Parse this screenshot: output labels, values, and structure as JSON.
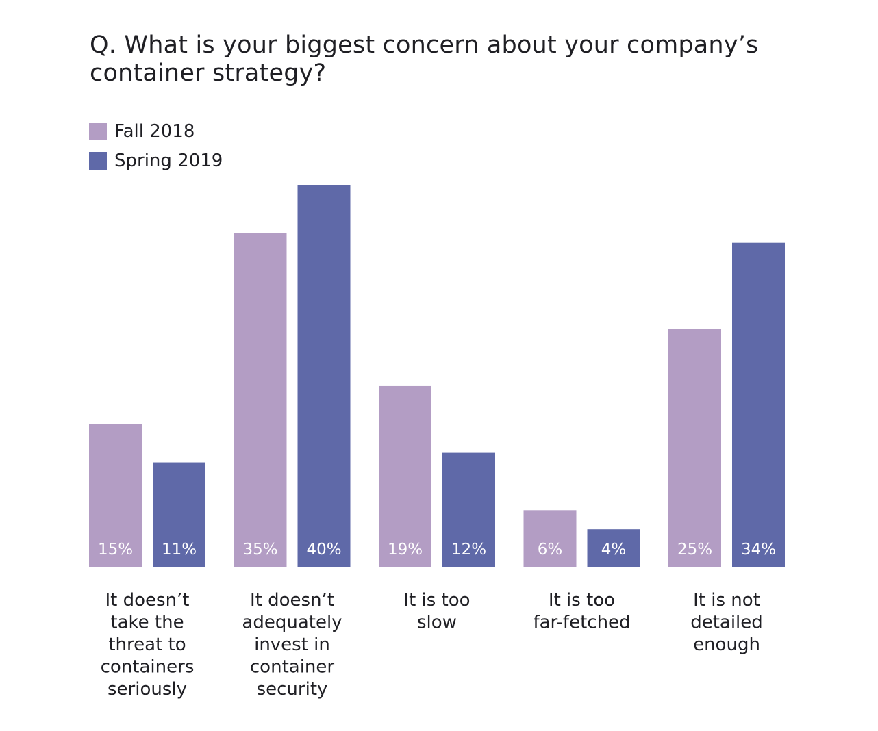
{
  "chart_data": {
    "type": "bar",
    "title": "Q. What is your biggest concern about your company’s container strategy?",
    "categories": [
      [
        "It doesn’t",
        "take the",
        "threat to",
        "containers",
        "seriously"
      ],
      [
        "It doesn’t",
        "adequately",
        "invest in",
        "container",
        "security"
      ],
      [
        "It is too",
        "slow"
      ],
      [
        "It is too",
        "far-fetched"
      ],
      [
        "It is not",
        "detailed",
        "enough"
      ]
    ],
    "series": [
      {
        "name": "Fall 2018",
        "color": "#b39dc4",
        "values": [
          15,
          35,
          19,
          6,
          25
        ],
        "labels": [
          "15%",
          "35%",
          "19%",
          "6%",
          "25%"
        ]
      },
      {
        "name": "Spring 2019",
        "color": "#5f69a8",
        "values": [
          11,
          40,
          12,
          4,
          34
        ],
        "labels": [
          "11%",
          "40%",
          "12%",
          "4%",
          "34%"
        ]
      }
    ],
    "ylim": [
      0,
      40
    ],
    "grid": false,
    "legend": "top-left"
  }
}
